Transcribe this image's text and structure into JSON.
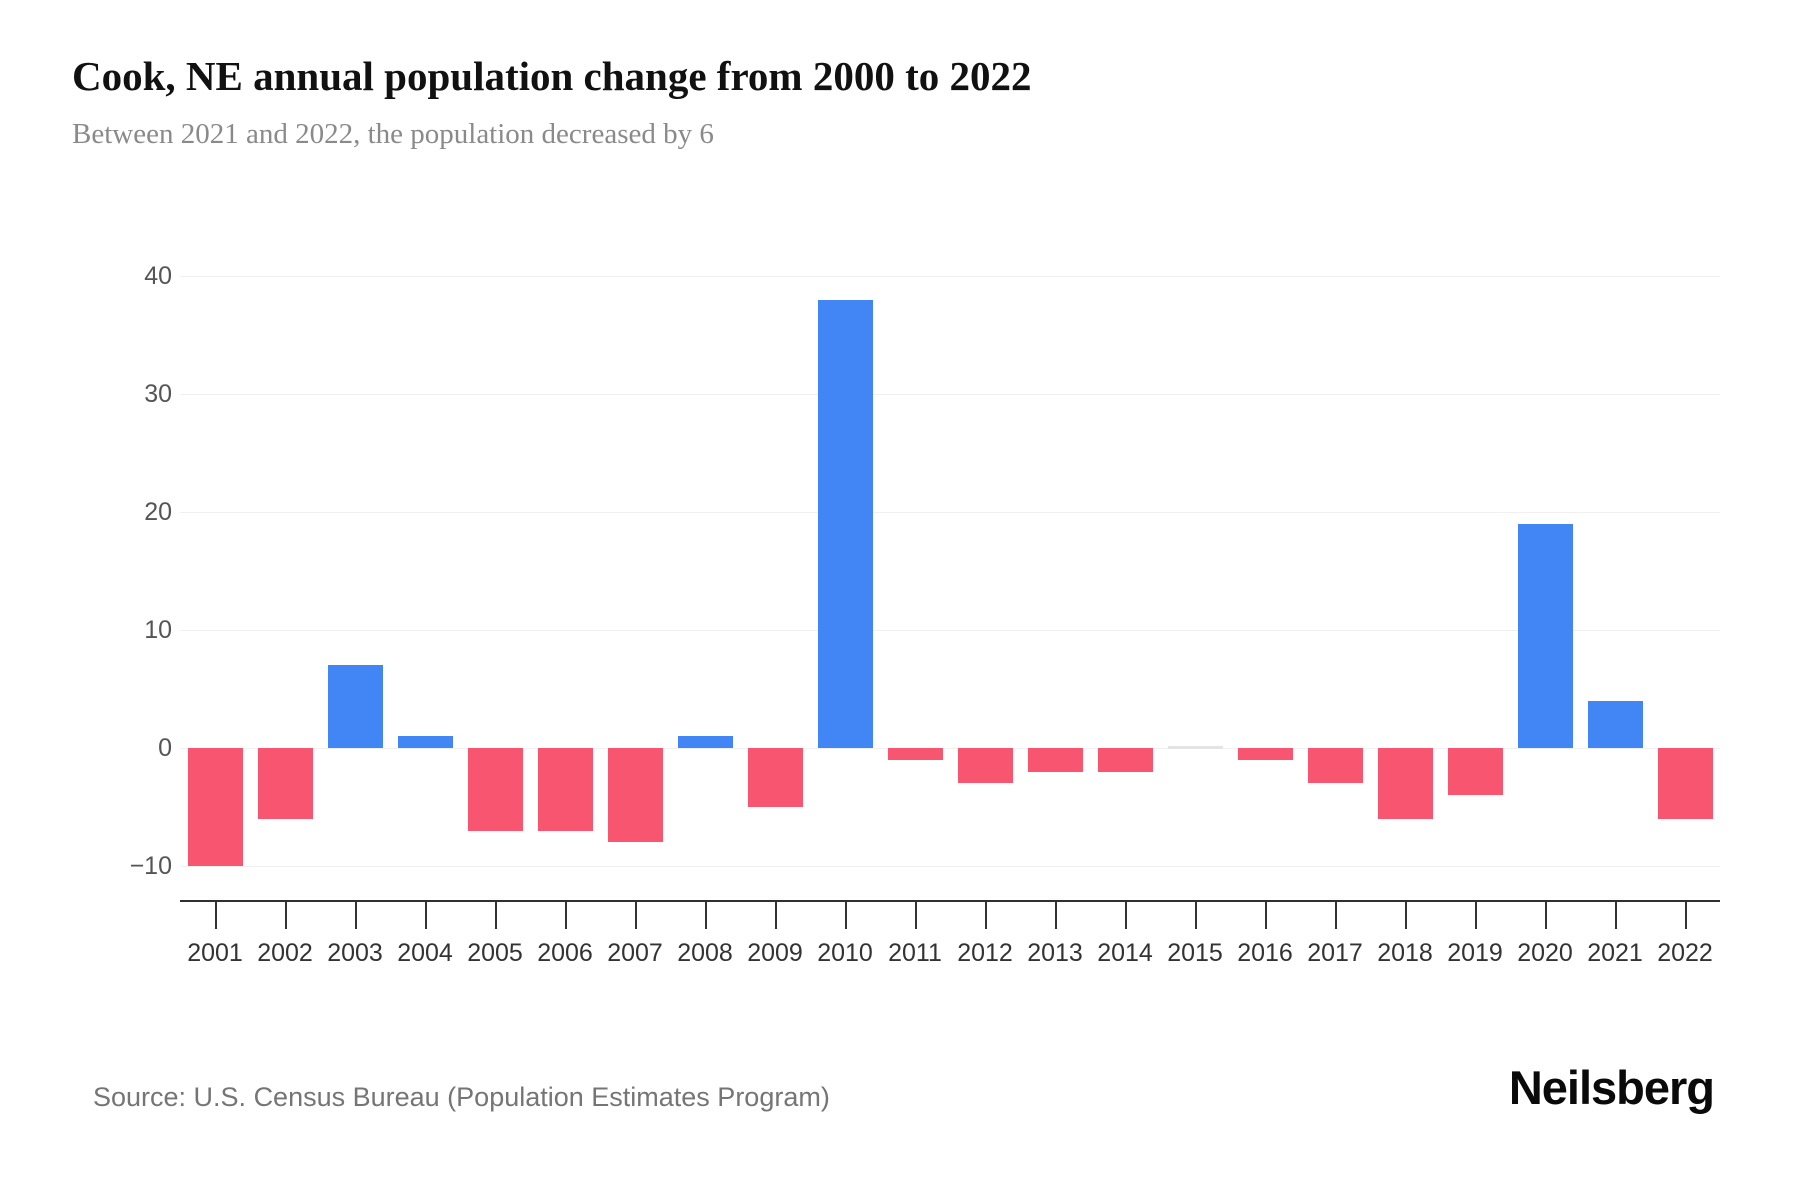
{
  "page": {
    "title": "Cook, NE annual population change from 2000 to 2022",
    "subtitle": "Between 2021 and 2022, the population decreased by 6",
    "source": "Source: U.S. Census Bureau (Population Estimates Program)",
    "brand": "Neilsberg"
  },
  "colors": {
    "positive_bar": "#4285f4",
    "negative_bar": "#f85570",
    "zero_bar": "#e4e4e6",
    "gridline": "#f0f0f0",
    "axis_line": "#303030",
    "tick": "#333333",
    "title_text": "#111111",
    "subtitle_text": "#8a8a8a",
    "y_label_text": "#555555",
    "x_label_text": "#333333",
    "source_text": "#757575",
    "brand_text": "#0a0a0a"
  },
  "chart_data": {
    "type": "bar",
    "title": "Cook, NE annual population change from 2000 to 2022",
    "subtitle": "Between 2021 and 2022, the population decreased by 6",
    "categories": [
      "2001",
      "2002",
      "2003",
      "2004",
      "2005",
      "2006",
      "2007",
      "2008",
      "2009",
      "2010",
      "2011",
      "2012",
      "2013",
      "2014",
      "2015",
      "2016",
      "2017",
      "2018",
      "2019",
      "2020",
      "2021",
      "2022"
    ],
    "values": [
      -10,
      -6,
      7,
      1,
      -7,
      -7,
      -8,
      1,
      -5,
      38,
      -1,
      -3,
      -2,
      -2,
      0,
      -1,
      -3,
      -6,
      -4,
      19,
      4,
      -6
    ],
    "xlabel": "",
    "ylabel": "",
    "ylim": [
      -10,
      40
    ],
    "ytick_values": [
      40,
      30,
      20,
      10,
      0,
      -10
    ],
    "ytick_labels": [
      "40",
      "30",
      "20",
      "10",
      "0",
      "−10"
    ],
    "grid": true,
    "legend": false,
    "positive_color": "#4285f4",
    "negative_color": "#f85570"
  }
}
